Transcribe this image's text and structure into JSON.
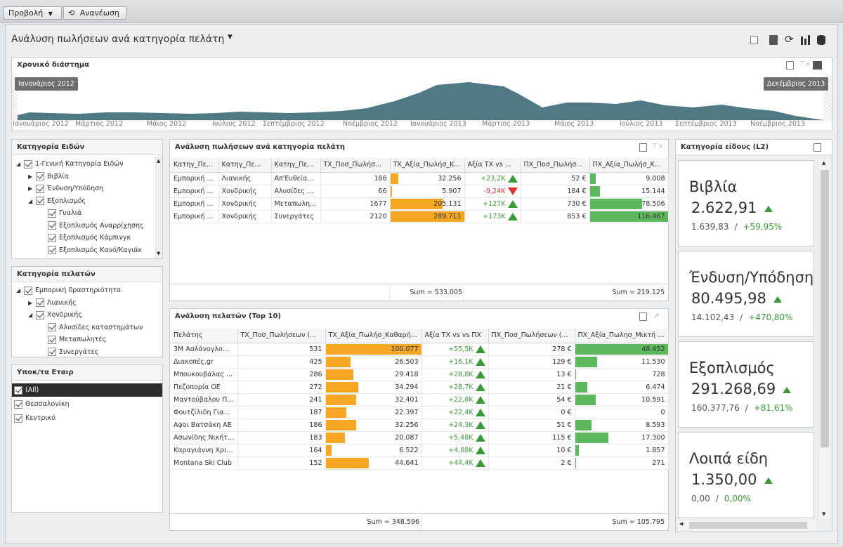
{
  "toolbar": {
    "view_label": "Προβολή",
    "refresh_label": "Ανανέωση"
  },
  "dashboard": {
    "title": "Ανάλυση πωλήσεων ανά κατηγορία πελάτη"
  },
  "timeline": {
    "title": "Χρονικό διάστημα",
    "start_tag": "Ιανουάριος 2012",
    "end_tag": "Δεκέμβριος 2013",
    "axis_labels": [
      "Ιανουάριος 2012",
      "Μάρτιος 2012",
      "Μάιος 2012",
      "Ιούλιος 2012",
      "Σεπτέμβριος 2012",
      "Νοέμβριος 2012",
      "Ιανουάριος 2013",
      "Μάρτιος 2013",
      "Μάιος 2013",
      "Ιούλιος 2013",
      "Σεπτέμβριος 2013",
      "Νοέμβριος 2013"
    ],
    "color": "#4f7a83"
  },
  "item_categories": {
    "title": "Κατηγορία Ειδών",
    "items": [
      {
        "label": "1-Γενική Κατηγορία Ειδών",
        "level": 0,
        "expander": "down"
      },
      {
        "label": "Βιβλία",
        "level": 1,
        "expander": "right"
      },
      {
        "label": "Ένδυση/Υπόδηση",
        "level": 1,
        "expander": "right"
      },
      {
        "label": "Εξοπλισμός",
        "level": 1,
        "expander": "down"
      },
      {
        "label": "Γυαλιά",
        "level": 2,
        "expander": ""
      },
      {
        "label": "Εξοπλισμός Αναρρίχησης",
        "level": 2,
        "expander": ""
      },
      {
        "label": "Εξοπλισμός Κάμπινγκ",
        "level": 2,
        "expander": ""
      },
      {
        "label": "Εξοπλισμός Κανό/Καγιάκ",
        "level": 2,
        "expander": ""
      }
    ]
  },
  "customer_categories": {
    "title": "Κατηγορία πελατών",
    "items": [
      {
        "label": "Εμπορική δραστηριότητα",
        "level": 0,
        "expander": "down"
      },
      {
        "label": "Λιανικής",
        "level": 1,
        "expander": "right"
      },
      {
        "label": "Χονδρικής",
        "level": 1,
        "expander": "down"
      },
      {
        "label": "Αλυσίδες καταστημάτων",
        "level": 2,
        "expander": ""
      },
      {
        "label": "Μεταπωλητές",
        "level": 2,
        "expander": ""
      },
      {
        "label": "Συνεργάτες",
        "level": 2,
        "expander": ""
      }
    ]
  },
  "branches": {
    "title": "Υποκ/τα Εταιρ",
    "items": [
      "(All)",
      "Θεσσαλονίκη",
      "Κεντρικό"
    ]
  },
  "sales_grid": {
    "title": "Ανάλυση πωλήσεων ανά κατηγορία πελάτη",
    "columns": [
      "Κατηγ_Πε...",
      "Κατηγ_Πε...",
      "Κατηγ_Πε...",
      "ΤΧ_Ποσ_Πωλήσ...",
      "ΤΧ_Αξία_Πωλήσ_Κ...",
      "Αξία ΤΧ vs ...",
      "ΠΧ_Ποσ_Πωλήσ...",
      "ΠΧ_Αξία_Πωλήσ_Κ..."
    ],
    "rows": [
      {
        "c1": "Εμπορική ...",
        "c2": "Λιανικής",
        "c3": "Απ'Ευθείας...",
        "qty": "186",
        "val": "32.256",
        "val_pct": 0.11,
        "delta": "+23,2K",
        "dir": "up",
        "pqty": "52 €",
        "pval": "9.008",
        "pval_pct": 0.08
      },
      {
        "c1": "Εμπορική ...",
        "c2": "Χονδρικής",
        "c3": "Αλυσίδες ...",
        "qty": "66",
        "val": "5.907",
        "val_pct": 0.02,
        "delta": "-9,24K",
        "dir": "down",
        "pqty": "184 €",
        "pval": "15.144",
        "pval_pct": 0.13
      },
      {
        "c1": "Εμπορική ...",
        "c2": "Χονδρικής",
        "c3": "Μεταπωλη...",
        "qty": "1677",
        "val": "205.131",
        "val_pct": 0.71,
        "delta": "+127K",
        "dir": "up",
        "pqty": "730 €",
        "pval": "78.506",
        "pval_pct": 0.67
      },
      {
        "c1": "Εμπορική ...",
        "c2": "Χονδρικής",
        "c3": "Συνεργάτες",
        "qty": "2120",
        "val": "289.711",
        "val_pct": 1.0,
        "delta": "+173K",
        "dir": "up",
        "pqty": "853 €",
        "pval": "116.467",
        "pval_pct": 1.0
      }
    ],
    "sum_val": "Sum = 533.005",
    "sum_pval": "Sum = 219.125"
  },
  "customers_grid": {
    "title": "Ανάλυση πελατών (Top 10)",
    "columns": [
      "Πελάτης",
      "ΤΧ_Ποσ_Πωλήσεων (...",
      "ΤΧ_Αξία_Πωλήσ_Καθαρή...",
      "Αξία ΤΧ vs vs ΠΧ",
      "ΠΧ_Ποσ_Πωλήσεων (...",
      "ΠΧ_Αξία_Πωλησ_Μικτή (..."
    ],
    "rows": [
      {
        "name": "3M Ασλάνογλο...",
        "qty": "531",
        "val": "100.077",
        "val_pct": 1.0,
        "delta": "+55,5K",
        "pqty": "278 €",
        "pval": "48.452",
        "pval_pct": 1.0
      },
      {
        "name": "Διακοπές.gr",
        "qty": "425",
        "val": "26.503",
        "val_pct": 0.26,
        "delta": "+16,1K",
        "pqty": "129 €",
        "pval": "11.530",
        "pval_pct": 0.24
      },
      {
        "name": "Μπουκουβάλας ...",
        "qty": "286",
        "val": "29.418",
        "val_pct": 0.29,
        "delta": "+28,8K",
        "pqty": "13 €",
        "pval": "728",
        "pval_pct": 0.015
      },
      {
        "name": "Πεζοπορία ΟΕ",
        "qty": "272",
        "val": "34.294",
        "val_pct": 0.34,
        "delta": "+28,7K",
        "pqty": "21 €",
        "pval": "6.474",
        "pval_pct": 0.13
      },
      {
        "name": "Μαντούβαλου Π...",
        "qty": "241",
        "val": "32.401",
        "val_pct": 0.32,
        "delta": "+22,8K",
        "pqty": "54 €",
        "pval": "10.591",
        "pval_pct": 0.22
      },
      {
        "name": "Φουτζίλιδη Γιασεμί",
        "qty": "187",
        "val": "22.397",
        "val_pct": 0.22,
        "delta": "+22,4K",
        "pqty": "0 €",
        "pval": "0",
        "pval_pct": 0
      },
      {
        "name": "Αφοι Βατσάκη ΑΕ",
        "qty": "186",
        "val": "32.256",
        "val_pct": 0.32,
        "delta": "+24,3K",
        "pqty": "51 €",
        "pval": "8.593",
        "pval_pct": 0.18
      },
      {
        "name": "Ασωνίδης Νικήτ...",
        "qty": "183",
        "val": "20.087",
        "val_pct": 0.2,
        "delta": "+5,48K",
        "pqty": "115 €",
        "pval": "17.300",
        "pval_pct": 0.36
      },
      {
        "name": "Καραγιάννη Χρι...",
        "qty": "164",
        "val": "6.522",
        "val_pct": 0.065,
        "delta": "+4,88K",
        "pqty": "10 €",
        "pval": "1.857",
        "pval_pct": 0.04
      },
      {
        "name": "Montana Ski Club",
        "qty": "152",
        "val": "44.641",
        "val_pct": 0.45,
        "delta": "+44,4K",
        "pqty": "2 €",
        "pval": "271",
        "pval_pct": 0.006
      }
    ],
    "sum_val": "Sum = 348.596",
    "sum_pval": "Sum = 105.795"
  },
  "cards": {
    "title": "Κατηγορία είδους (L2)",
    "items": [
      {
        "name": "Βιβλία",
        "value": "2.622,91",
        "prev": "1.639,83",
        "sep": "/",
        "pct": "+59,95%"
      },
      {
        "name": "Ένδυση/Υπόδηση",
        "value": "80.495,98",
        "prev": "14.102,43",
        "sep": "/",
        "pct": "+470,80%"
      },
      {
        "name": "Εξοπλισμός",
        "value": "291.268,69",
        "prev": "160.377,76",
        "sep": "/",
        "pct": "+81,61%"
      },
      {
        "name": "Λοιπά είδη",
        "value": "1.350,00",
        "prev": "0,00",
        "sep": "/",
        "pct": "0,00%"
      }
    ]
  },
  "colors": {
    "orange": "#f5a623",
    "green": "#5cb85c",
    "up": "#3a9a3a",
    "down": "#d33333"
  }
}
